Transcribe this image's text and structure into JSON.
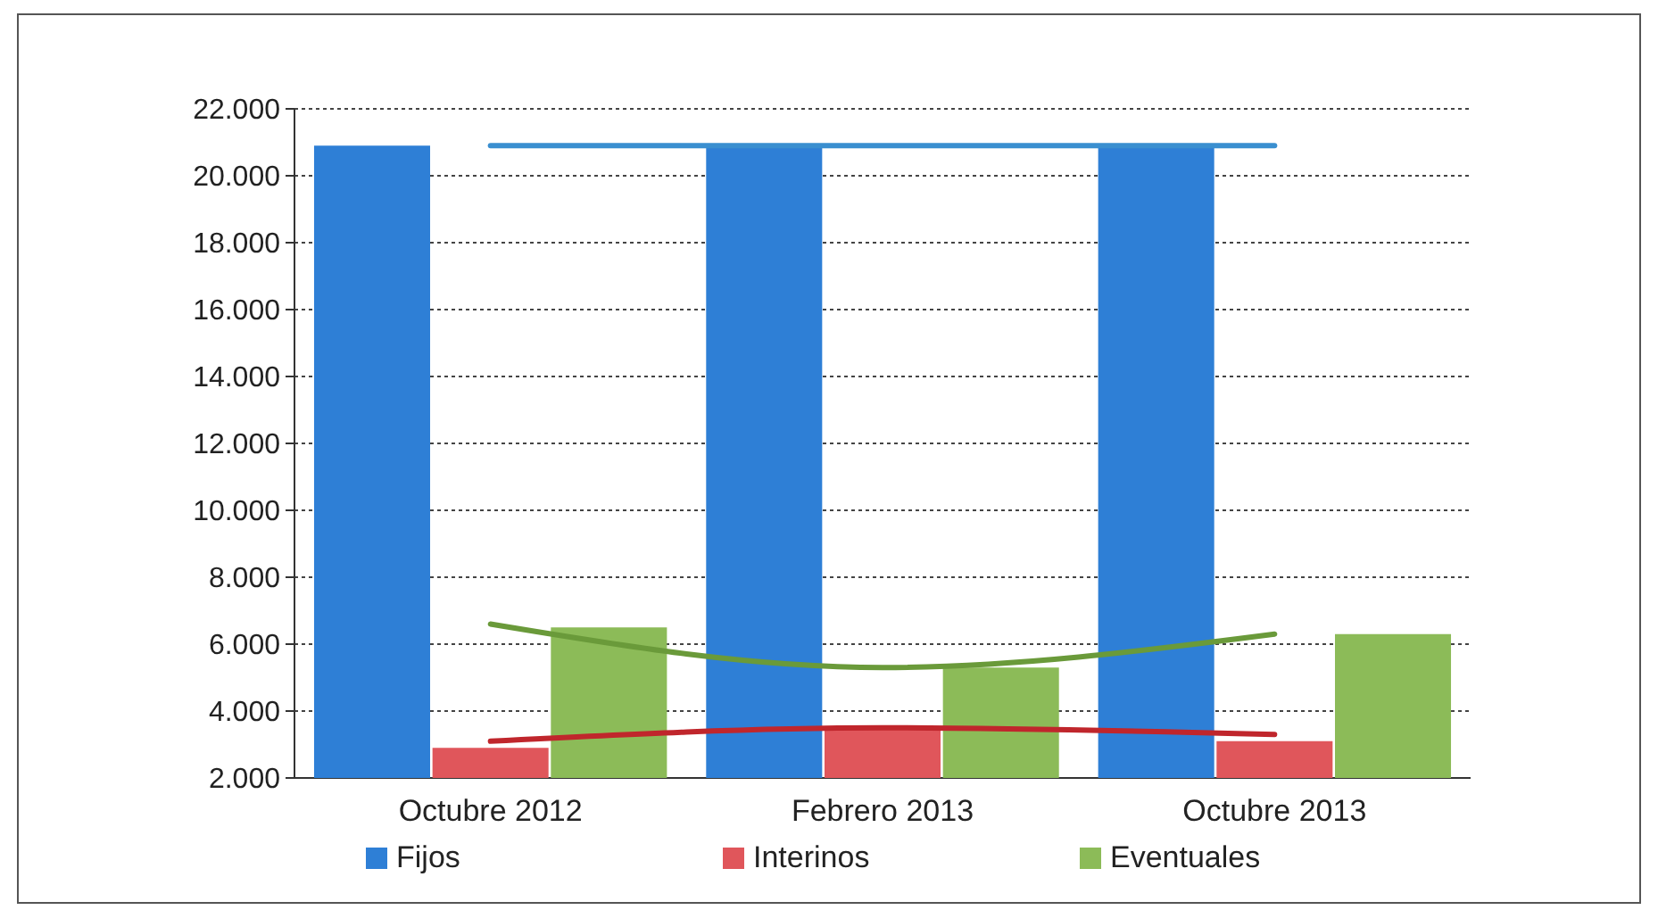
{
  "chart_data": {
    "type": "bar",
    "categories": [
      "Octubre 2012",
      "Febrero 2013",
      "Octubre 2013"
    ],
    "series": [
      {
        "name": "Fijos",
        "color": "#2e7fd6",
        "values": [
          20900,
          20900,
          20900
        ]
      },
      {
        "name": "Interinos",
        "color": "#e0565b",
        "values": [
          2900,
          3500,
          3100
        ]
      },
      {
        "name": "Eventuales",
        "color": "#8cbb58",
        "values": [
          6500,
          5300,
          6300
        ]
      },
      {
        "type": "line",
        "color": "#3a8fd0",
        "values": [
          20900,
          20900,
          20900
        ]
      },
      {
        "type": "line",
        "color": "#c0262c",
        "values": [
          3100,
          3500,
          3300
        ]
      },
      {
        "type": "line",
        "color": "#6a9a3a",
        "values": [
          6600,
          5300,
          6300
        ]
      }
    ],
    "ylim": [
      2000,
      22000
    ],
    "yticks": [
      {
        "value": 2000,
        "label": "2.000"
      },
      {
        "value": 4000,
        "label": "4.000"
      },
      {
        "value": 6000,
        "label": "6.000"
      },
      {
        "value": 8000,
        "label": "8.000"
      },
      {
        "value": 10000,
        "label": "10.000"
      },
      {
        "value": 12000,
        "label": "12.000"
      },
      {
        "value": 14000,
        "label": "14.000"
      },
      {
        "value": 16000,
        "label": "16.000"
      },
      {
        "value": 18000,
        "label": "18.000"
      },
      {
        "value": 20000,
        "label": "20.000"
      },
      {
        "value": 22000,
        "label": "22.000"
      }
    ],
    "grid": "y",
    "legend": "bottom",
    "line_style": "solid",
    "marker": "none"
  }
}
